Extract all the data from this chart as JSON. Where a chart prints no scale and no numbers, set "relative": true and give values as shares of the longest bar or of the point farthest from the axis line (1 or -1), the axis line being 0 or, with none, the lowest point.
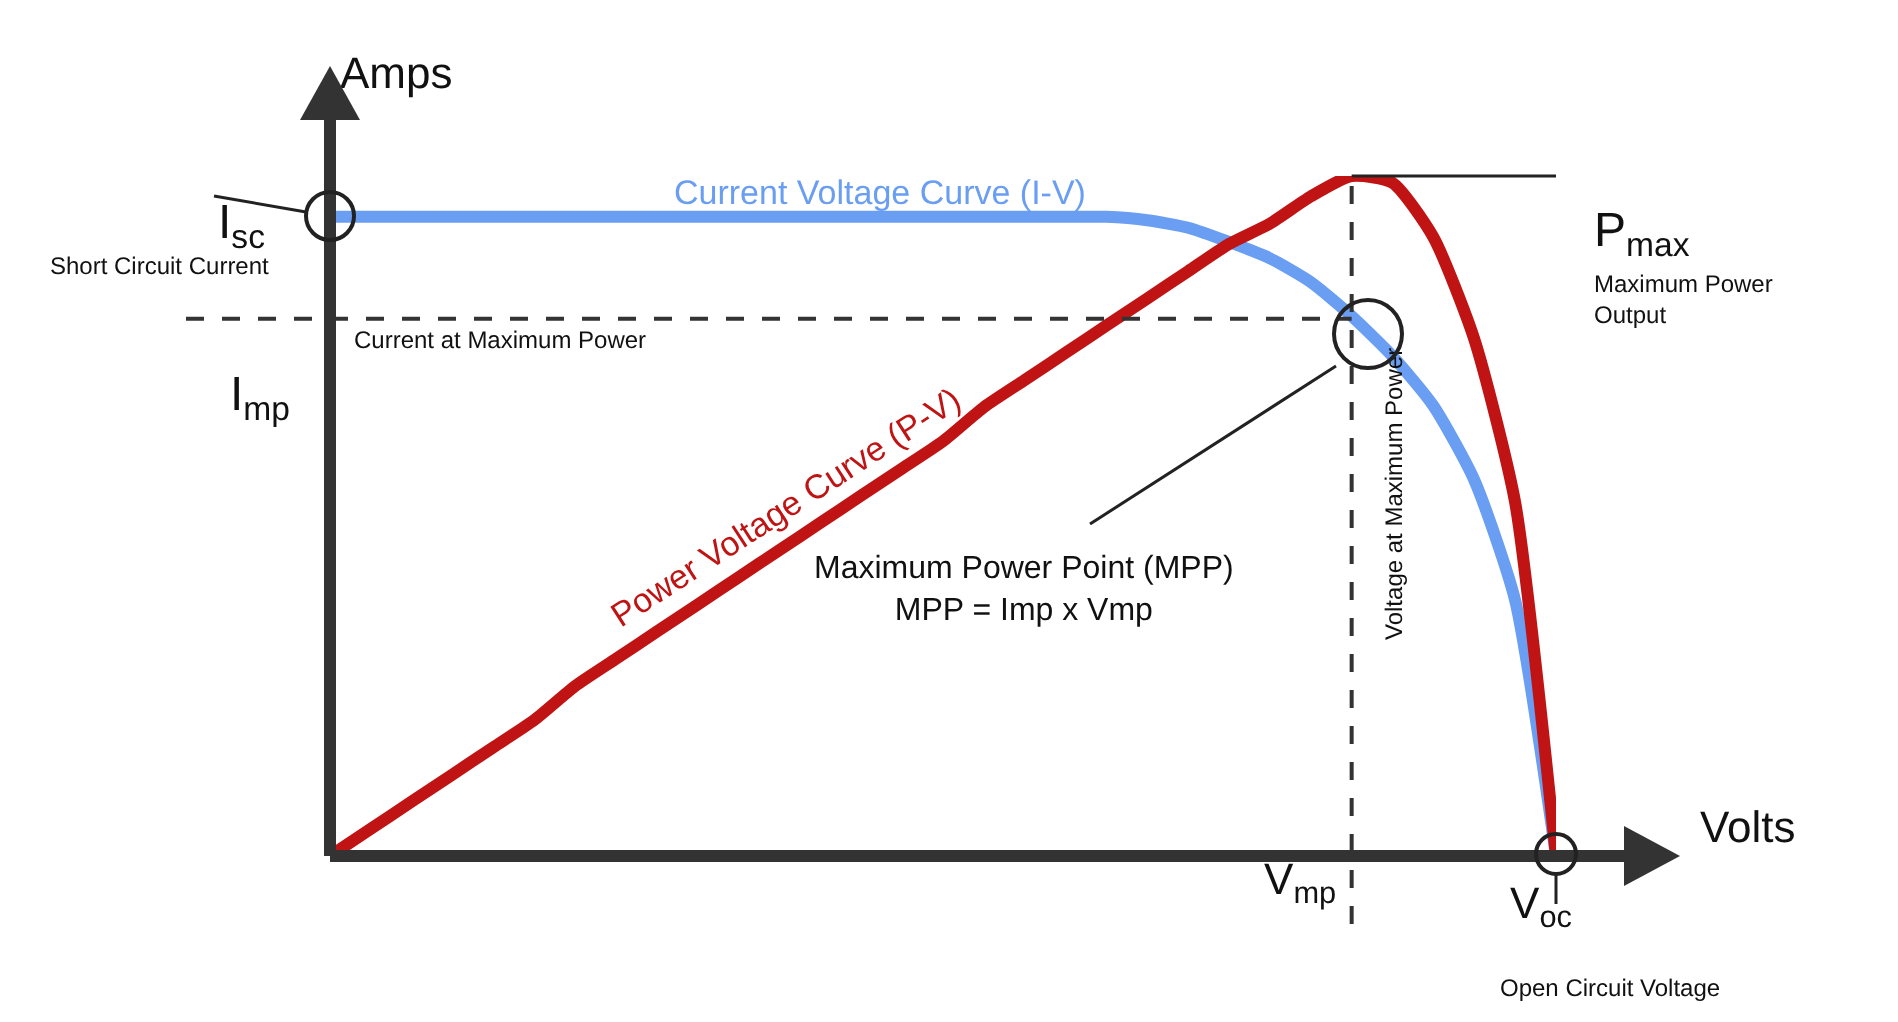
{
  "chart_data": {
    "type": "line",
    "relative": true,
    "xlabel": "Volts",
    "ylabel": "Amps",
    "categories": [
      null,
      null,
      null,
      null,
      null,
      null,
      null,
      null,
      null,
      null,
      null,
      null,
      null,
      null,
      null,
      null,
      null,
      null,
      null,
      null,
      null,
      null,
      null,
      null,
      null,
      null,
      null,
      null,
      null,
      null,
      null
    ],
    "series": [
      {
        "name": "Current Voltage Curve (I-V)",
        "color": "#6a9ef2",
        "values": [
          0.94,
          0.94,
          0.94,
          0.94,
          0.94,
          0.94,
          0.94,
          0.94,
          0.94,
          0.94,
          0.94,
          0.94,
          0.94,
          0.94,
          0.94,
          0.94,
          0.94,
          0.94,
          0.94,
          0.94,
          0.935,
          0.924,
          0.903,
          0.879,
          0.844,
          0.794,
          0.735,
          0.662,
          0.553,
          0.376,
          0
        ]
      },
      {
        "name": "Power Voltage Curve (P-V)",
        "color": "#c01414",
        "values": [
          0,
          0.04,
          0.08,
          0.12,
          0.16,
          0.2,
          0.25,
          0.29,
          0.33,
          0.37,
          0.41,
          0.45,
          0.49,
          0.53,
          0.57,
          0.61,
          0.66,
          0.7,
          0.74,
          0.78,
          0.82,
          0.86,
          0.9,
          0.93,
          0.97,
          1,
          0.99,
          0.91,
          0.76,
          0.52,
          0
        ]
      }
    ],
    "ref_lines": [
      {
        "axis": "y",
        "value": 0.79,
        "label": "Current at Maximum Power",
        "color": "#333333",
        "line_style": "dashed"
      }
    ],
    "annotations": [
      "I$_{sc}$",
      "Short Circuit Current",
      "I$_{mp}$",
      "P$_{max}$",
      "Maximum Power Output",
      "Maximum Power Point (MPP)\nMPP = Imp x Vmp",
      "V$_{mp}$",
      "V$_{oc}$",
      "Open Circuit Voltage",
      "Voltage at Maximum Power"
    ]
  }
}
